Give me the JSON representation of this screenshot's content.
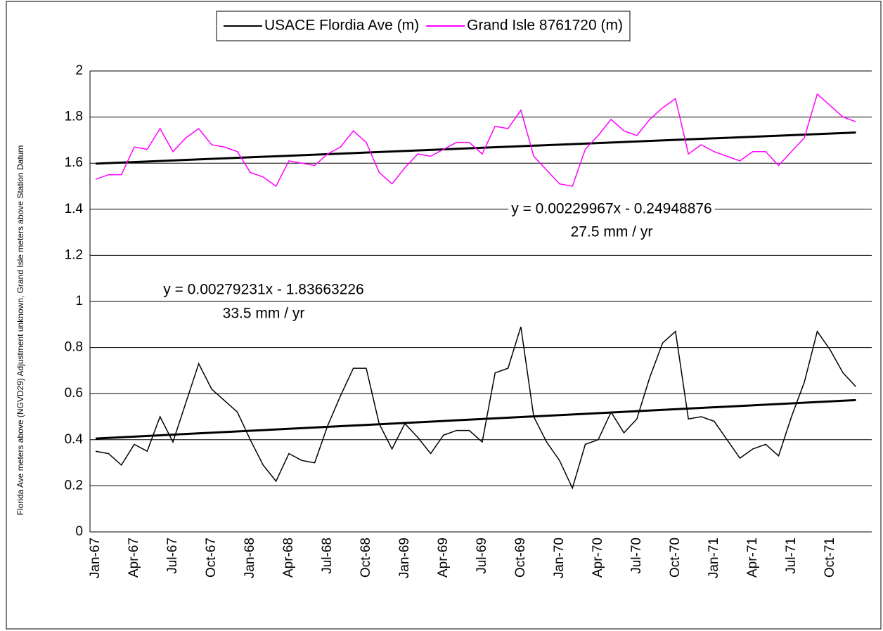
{
  "chart_data": {
    "type": "line",
    "y_label": "Florida Ave meters above (NGVD29) Adjustment  unknown, Grand Isle meters above Station Datum",
    "categories": [
      "Jan-67",
      null,
      null,
      "Apr-67",
      null,
      null,
      "Jul-67",
      null,
      null,
      "Oct-67",
      null,
      null,
      "Jan-68",
      null,
      null,
      "Apr-68",
      null,
      null,
      "Jul-68",
      null,
      null,
      "Oct-68",
      null,
      null,
      "Jan-69",
      null,
      null,
      "Apr-69",
      null,
      null,
      "Jul-69",
      null,
      null,
      "Oct-69",
      null,
      null,
      "Jan-70",
      null,
      null,
      "Apr-70",
      null,
      null,
      "Jul-70",
      null,
      null,
      "Oct-70",
      null,
      null,
      "Jan-71",
      null,
      null,
      "Apr-71",
      null,
      null,
      "Jul-71",
      null,
      null,
      "Oct-71",
      null,
      null
    ],
    "series": [
      {
        "name": "USACE Flordia Ave (m)",
        "color": "#000000",
        "values": [
          0.35,
          0.34,
          0.29,
          0.38,
          0.35,
          0.5,
          0.39,
          0.56,
          0.73,
          0.62,
          0.57,
          0.52,
          0.4,
          0.29,
          0.22,
          0.34,
          0.31,
          0.3,
          0.46,
          0.59,
          0.71,
          0.71,
          0.47,
          0.36,
          0.47,
          0.41,
          0.34,
          0.42,
          0.44,
          0.44,
          0.39,
          0.69,
          0.71,
          0.89,
          0.5,
          0.39,
          0.31,
          0.19,
          0.38,
          0.4,
          0.52,
          0.43,
          0.49,
          0.67,
          0.82,
          0.87,
          0.49,
          0.5,
          0.48,
          0.4,
          0.32,
          0.36,
          0.38,
          0.33,
          0.5,
          0.65,
          0.87,
          0.79,
          0.69,
          0.63
        ]
      },
      {
        "name": "Grand Isle 8761720 (m)",
        "color": "#ff00ff",
        "values": [
          1.53,
          1.55,
          1.55,
          1.67,
          1.66,
          1.75,
          1.65,
          1.71,
          1.75,
          1.68,
          1.67,
          1.65,
          1.56,
          1.54,
          1.5,
          1.61,
          1.6,
          1.59,
          1.64,
          1.67,
          1.74,
          1.69,
          1.56,
          1.51,
          1.58,
          1.64,
          1.63,
          1.66,
          1.69,
          1.69,
          1.64,
          1.76,
          1.75,
          1.83,
          1.63,
          1.57,
          1.51,
          1.5,
          1.66,
          1.72,
          1.79,
          1.74,
          1.72,
          1.79,
          1.84,
          1.88,
          1.64,
          1.68,
          1.65,
          1.63,
          1.61,
          1.65,
          1.65,
          1.59,
          1.65,
          1.71,
          1.9,
          1.85,
          1.8,
          1.78
        ]
      }
    ],
    "trendlines": [
      {
        "color": "#000000",
        "values": [
          0.405,
          0.572
        ]
      },
      {
        "color": "#000000",
        "values": [
          1.598,
          1.733
        ]
      }
    ],
    "annotations": [
      "y = 0.00229967x - 0.24948876",
      "27.5 mm / yr",
      "y = 0.00279231x - 1.83663226",
      "33.5 mm / yr"
    ],
    "ylim": [
      0,
      2
    ],
    "yticks": [
      0,
      0.2,
      0.4,
      0.6,
      0.8,
      1,
      1.2,
      1.4,
      1.6,
      1.8,
      2
    ],
    "grid": true,
    "legend": "top"
  }
}
